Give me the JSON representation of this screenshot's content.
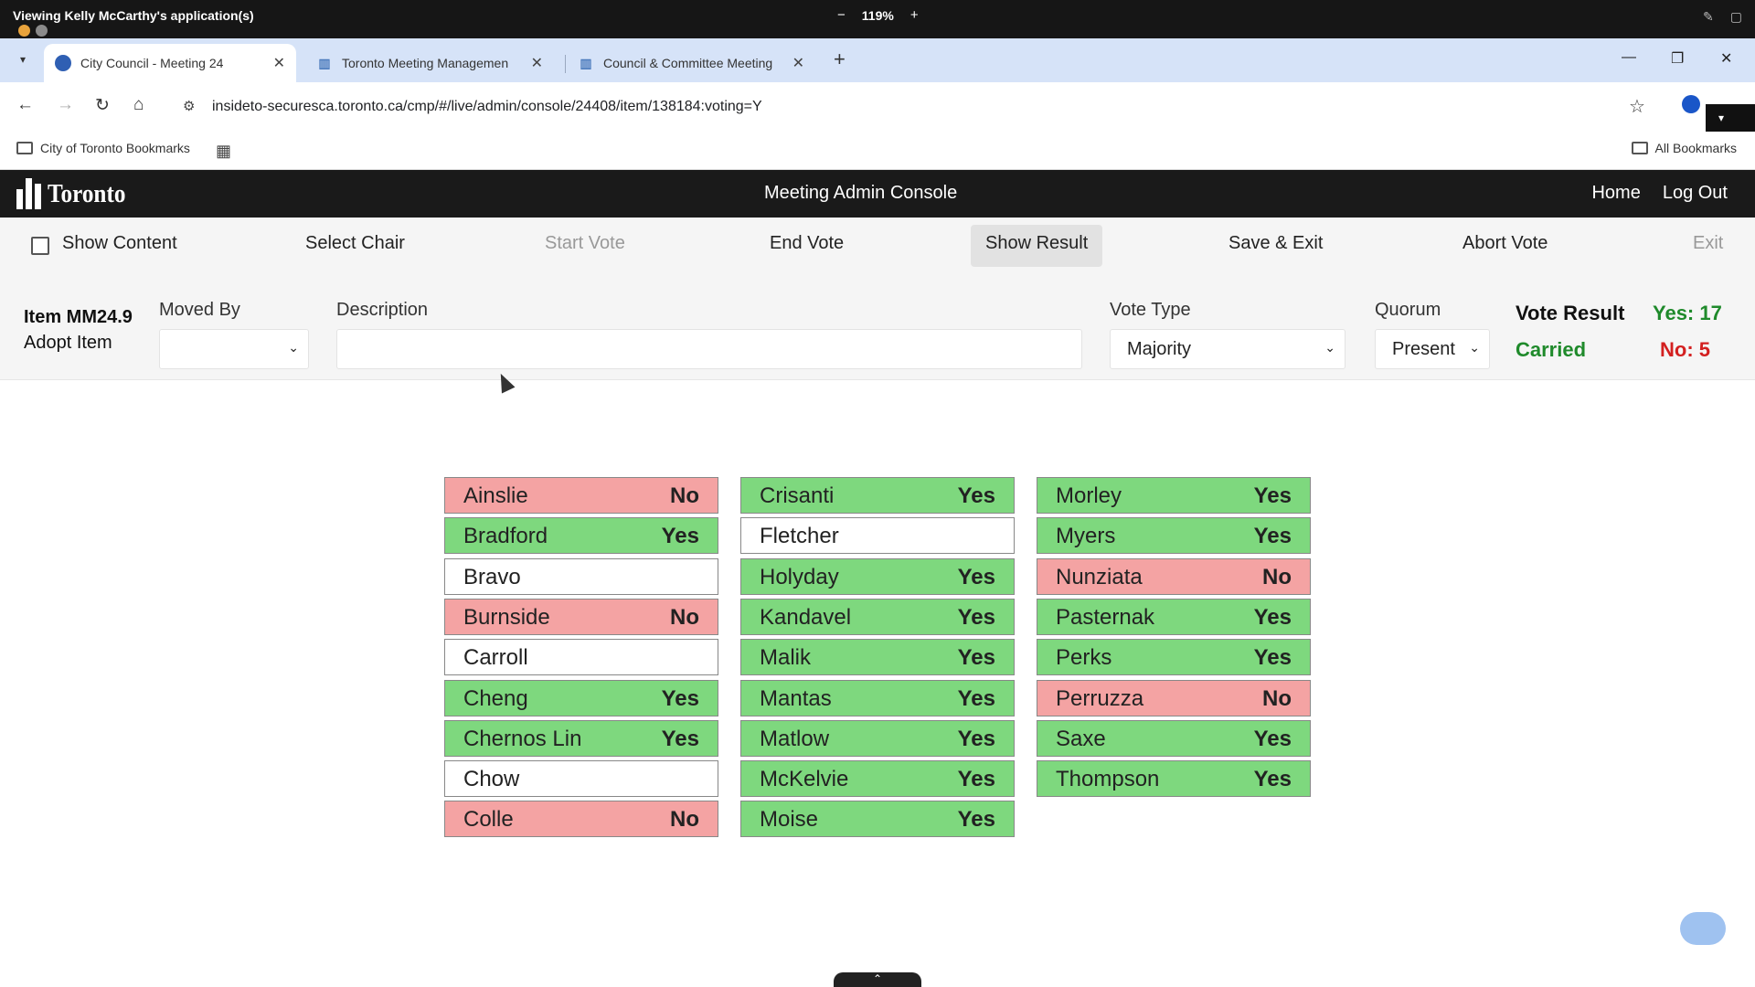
{
  "share_bar": {
    "title": "Viewing Kelly McCarthy's application(s)",
    "zoom": "119%",
    "zoom_minus": "−",
    "zoom_plus": "+"
  },
  "tabs": [
    {
      "label": "City Council - Meeting 24",
      "active": true
    },
    {
      "label": "Toronto Meeting Managemen",
      "active": false
    },
    {
      "label": "Council & Committee Meeting",
      "active": false
    }
  ],
  "browser": {
    "url": "insideto-securesca.toronto.ca/cmp/#/live/admin/console/24408/item/138184:voting=Y",
    "bookmarks_folder": "City of Toronto Bookmarks",
    "all_bookmarks": "All Bookmarks"
  },
  "app": {
    "logo_text": "Toronto",
    "title": "Meeting Admin Console",
    "nav": {
      "home": "Home",
      "logout": "Log Out"
    }
  },
  "toolbar": {
    "show_content": "Show Content",
    "select_chair": "Select Chair",
    "start_vote": "Start Vote",
    "end_vote": "End Vote",
    "show_result": "Show Result",
    "save_exit": "Save & Exit",
    "abort_vote": "Abort Vote",
    "exit": "Exit"
  },
  "item": {
    "code": "Item MM24.9",
    "title": "Adopt Item",
    "moved_by_label": "Moved By",
    "moved_by_value": "",
    "description_label": "Description",
    "description_value": "",
    "vote_type_label": "Vote Type",
    "vote_type_value": "Majority",
    "quorum_label": "Quorum",
    "quorum_value": "Present"
  },
  "result": {
    "label": "Vote Result",
    "status": "Carried",
    "yes": "Yes: 17",
    "no": "No: 5"
  },
  "colors": {
    "yes": "#7ed87e",
    "no": "#f4a3a3",
    "none": "#ffffff",
    "carried": "#1f8a2b",
    "no_text": "#d32020"
  },
  "votes": [
    [
      {
        "name": "Ainslie",
        "vote": "No"
      },
      {
        "name": "Bradford",
        "vote": "Yes"
      },
      {
        "name": "Bravo",
        "vote": ""
      },
      {
        "name": "Burnside",
        "vote": "No"
      },
      {
        "name": "Carroll",
        "vote": ""
      },
      {
        "name": "Cheng",
        "vote": "Yes"
      },
      {
        "name": "Chernos Lin",
        "vote": "Yes"
      },
      {
        "name": "Chow",
        "vote": ""
      },
      {
        "name": "Colle",
        "vote": "No"
      }
    ],
    [
      {
        "name": "Crisanti",
        "vote": "Yes"
      },
      {
        "name": "Fletcher",
        "vote": ""
      },
      {
        "name": "Holyday",
        "vote": "Yes"
      },
      {
        "name": "Kandavel",
        "vote": "Yes"
      },
      {
        "name": "Malik",
        "vote": "Yes"
      },
      {
        "name": "Mantas",
        "vote": "Yes"
      },
      {
        "name": "Matlow",
        "vote": "Yes"
      },
      {
        "name": "McKelvie",
        "vote": "Yes"
      },
      {
        "name": "Moise",
        "vote": "Yes"
      }
    ],
    [
      {
        "name": "Morley",
        "vote": "Yes"
      },
      {
        "name": "Myers",
        "vote": "Yes"
      },
      {
        "name": "Nunziata",
        "vote": "No"
      },
      {
        "name": "Pasternak",
        "vote": "Yes"
      },
      {
        "name": "Perks",
        "vote": "Yes"
      },
      {
        "name": "Perruzza",
        "vote": "No"
      },
      {
        "name": "Saxe",
        "vote": "Yes"
      },
      {
        "name": "Thompson",
        "vote": "Yes"
      }
    ]
  ]
}
